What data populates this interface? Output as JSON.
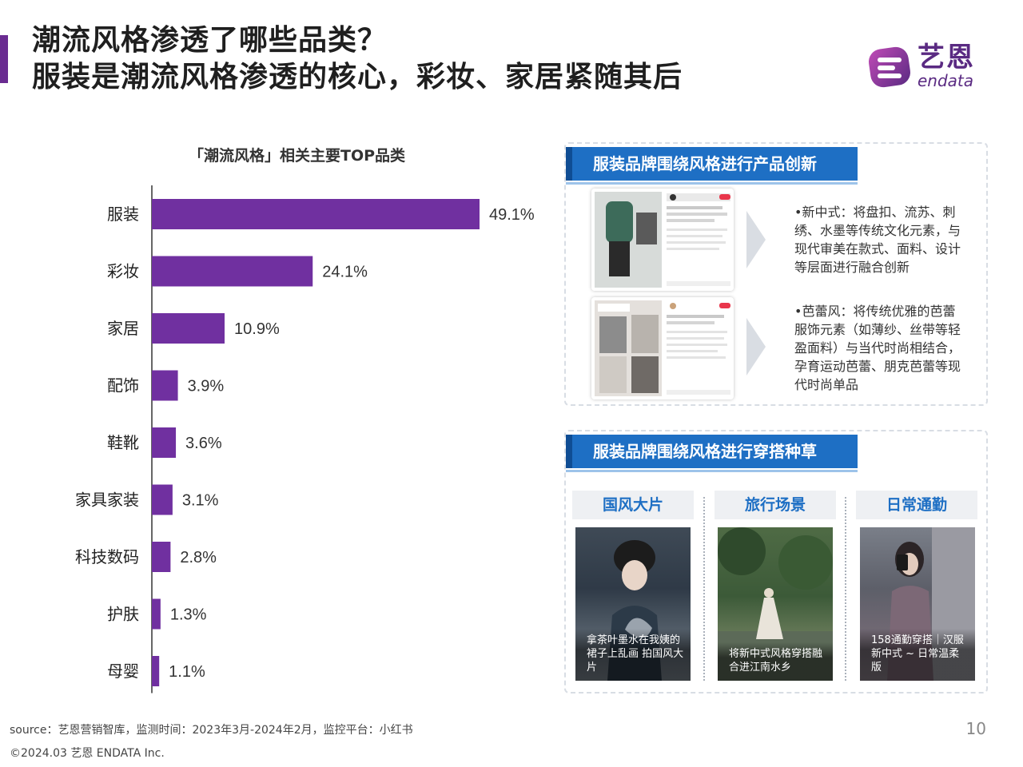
{
  "header": {
    "title_line1": "潮流风格渗透了哪些品类？",
    "title_line2": "服装是潮流风格渗透的核心，彩妆、家居紧随其后"
  },
  "logo": {
    "cn": "艺恩",
    "en": "endata",
    "color": "#5a2a82"
  },
  "colors": {
    "accent": "#6a2c91",
    "bar": "#7030a0",
    "panel_blue": "#1e6fc4"
  },
  "chart_data": {
    "type": "bar",
    "orientation": "horizontal",
    "title": "「潮流风格」相关主要TOP品类",
    "categories": [
      "服装",
      "彩妆",
      "家居",
      "配饰",
      "鞋靴",
      "家具家装",
      "科技数码",
      "护肤",
      "母婴"
    ],
    "values": [
      49.1,
      24.1,
      10.9,
      3.9,
      3.6,
      3.1,
      2.8,
      1.3,
      1.1
    ],
    "value_labels": [
      "49.1%",
      "24.1%",
      "10.9%",
      "3.9%",
      "3.6%",
      "3.1%",
      "2.8%",
      "1.3%",
      "1.1%"
    ],
    "unit": "%",
    "xlim": [
      0,
      55
    ],
    "grid": false,
    "legend": "none"
  },
  "panel_a": {
    "heading": "服装品牌围绕风格进行产品创新",
    "bullet1": "•新中式：将盘扣、流苏、刺绣、水墨等传统文化元素，与现代审美在款式、面料、设计等层面进行融合创新",
    "bullet2": "•芭蕾风：将传统优雅的芭蕾服饰元素（如薄纱、丝带等轻盈面料）与当代时尚相结合，孕育运动芭蕾、朋克芭蕾等现代时尚单品"
  },
  "panel_b": {
    "heading": "服装品牌围绕风格进行穿搭种草",
    "tags": [
      "国风大片",
      "旅行场景",
      "日常通勤"
    ],
    "captions": [
      "拿茶叶墨水在我姨的裙子上乱画 拍国风大片",
      "将新中式风格穿搭融合进江南水乡",
      "158通勤穿搭｜汉服新中式 ~ 日常温柔版"
    ]
  },
  "footer": {
    "source": "source：艺恩营销智库，监测时间：2023年3月-2024年2月，监控平台：小红书",
    "copyright": "©2024.03 艺恩 ENDATA Inc.",
    "page": "10"
  }
}
